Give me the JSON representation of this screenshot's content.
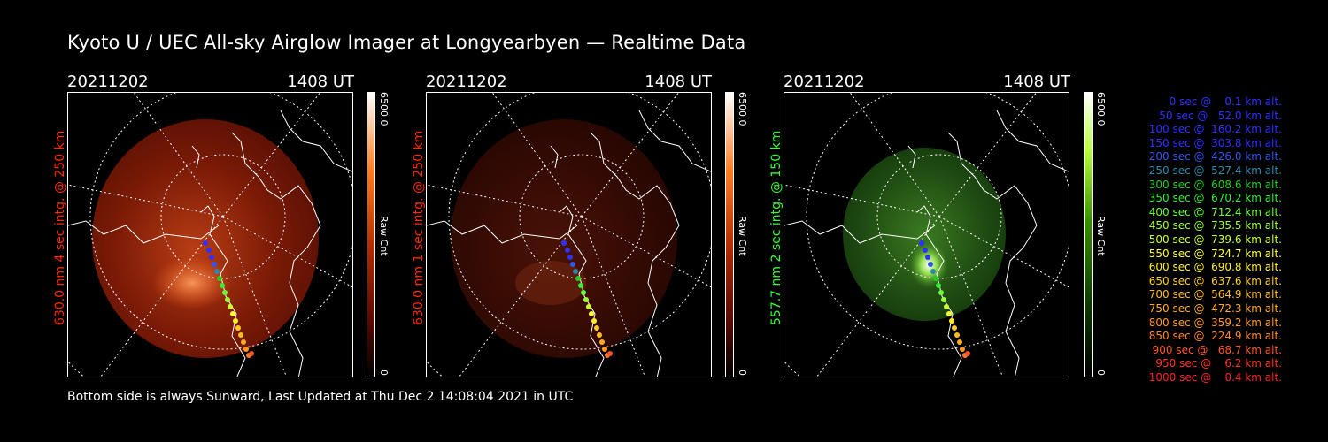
{
  "title": "Kyoto U / UEC All-sky Airglow Imager at Longyearbyen — Realtime Data",
  "footer": "Bottom side is always Sunward, Last Updated at Thu Dec  2 14:08:04 2021 in UTC",
  "panels": [
    {
      "date": "20211202",
      "time": "1408 UT",
      "ylabel": "630.0 nm 4 sec intg. @ 250 km",
      "label_color": "#ff2a00",
      "cbar_max": "6500.0",
      "cbar_min": "0",
      "cbar_unit": "Raw Cnt"
    },
    {
      "date": "20211202",
      "time": "1408 UT",
      "ylabel": "630.0 nm 1 sec intg. @ 250 km",
      "label_color": "#ff2a00",
      "cbar_max": "6500.0",
      "cbar_min": "0",
      "cbar_unit": "Raw Cnt"
    },
    {
      "date": "20211202",
      "time": "1408 UT",
      "ylabel": "557.7 nm 2 sec intg. @ 150 km",
      "label_color": "#33ff33",
      "cbar_max": "6500.0",
      "cbar_min": "0",
      "cbar_unit": "Raw Cnt"
    }
  ],
  "legend": [
    {
      "text": "   0 sec @    0.1 km alt.",
      "color": "#3030ff"
    },
    {
      "text": "  50 sec @   52.0 km alt.",
      "color": "#3030ff"
    },
    {
      "text": " 100 sec @  160.2 km alt.",
      "color": "#3030ff"
    },
    {
      "text": " 150 sec @  303.8 km alt.",
      "color": "#3030ff"
    },
    {
      "text": " 200 sec @  426.0 km alt.",
      "color": "#3355ee"
    },
    {
      "text": " 250 sec @  527.4 km alt.",
      "color": "#2a8aaa"
    },
    {
      "text": " 300 sec @  608.6 km alt.",
      "color": "#22cc22"
    },
    {
      "text": " 350 sec @  670.2 km alt.",
      "color": "#33ee33"
    },
    {
      "text": " 400 sec @  712.4 km alt.",
      "color": "#66ff33"
    },
    {
      "text": " 450 sec @  735.5 km alt.",
      "color": "#99ff33"
    },
    {
      "text": " 500 sec @  739.6 km alt.",
      "color": "#ccff33"
    },
    {
      "text": " 550 sec @  724.7 km alt.",
      "color": "#ffff33"
    },
    {
      "text": " 600 sec @  690.8 km alt.",
      "color": "#ffee22"
    },
    {
      "text": " 650 sec @  637.6 km alt.",
      "color": "#ffcc22"
    },
    {
      "text": " 700 sec @  564.9 km alt.",
      "color": "#ffbb22"
    },
    {
      "text": " 750 sec @  472.3 km alt.",
      "color": "#ffaa22"
    },
    {
      "text": " 800 sec @  359.2 km alt.",
      "color": "#ff9922"
    },
    {
      "text": " 850 sec @  224.9 km alt.",
      "color": "#ff8822"
    },
    {
      "text": " 900 sec @   68.7 km alt.",
      "color": "#ff5522"
    },
    {
      "text": " 950 sec @    6.2 km alt.",
      "color": "#ff3322"
    },
    {
      "text": "1000 sec @    0.4 km alt.",
      "color": "#ff2222"
    }
  ],
  "chart_data": [
    {
      "type": "heatmap",
      "title": "630.0 nm 4 sec intg. @ 250 km",
      "colorbar_range": [
        0,
        6500.0
      ],
      "colorbar_label": "Raw Cnt",
      "trajectory_times_sec": [
        0,
        50,
        100,
        150,
        200,
        250,
        300,
        350,
        400,
        450,
        500,
        550,
        600,
        650,
        700,
        750,
        800,
        850,
        900,
        950,
        1000
      ],
      "trajectory_alt_km": [
        0.1,
        52.0,
        160.2,
        303.8,
        426.0,
        527.4,
        608.6,
        670.2,
        712.4,
        735.5,
        739.6,
        724.7,
        690.8,
        637.6,
        564.9,
        472.3,
        359.2,
        224.9,
        68.7,
        6.2,
        0.4
      ]
    },
    {
      "type": "heatmap",
      "title": "630.0 nm 1 sec intg. @ 250 km",
      "colorbar_range": [
        0,
        6500.0
      ],
      "colorbar_label": "Raw Cnt"
    },
    {
      "type": "heatmap",
      "title": "557.7 nm 2 sec intg. @ 150 km",
      "colorbar_range": [
        0,
        6500.0
      ],
      "colorbar_label": "Raw Cnt"
    }
  ]
}
